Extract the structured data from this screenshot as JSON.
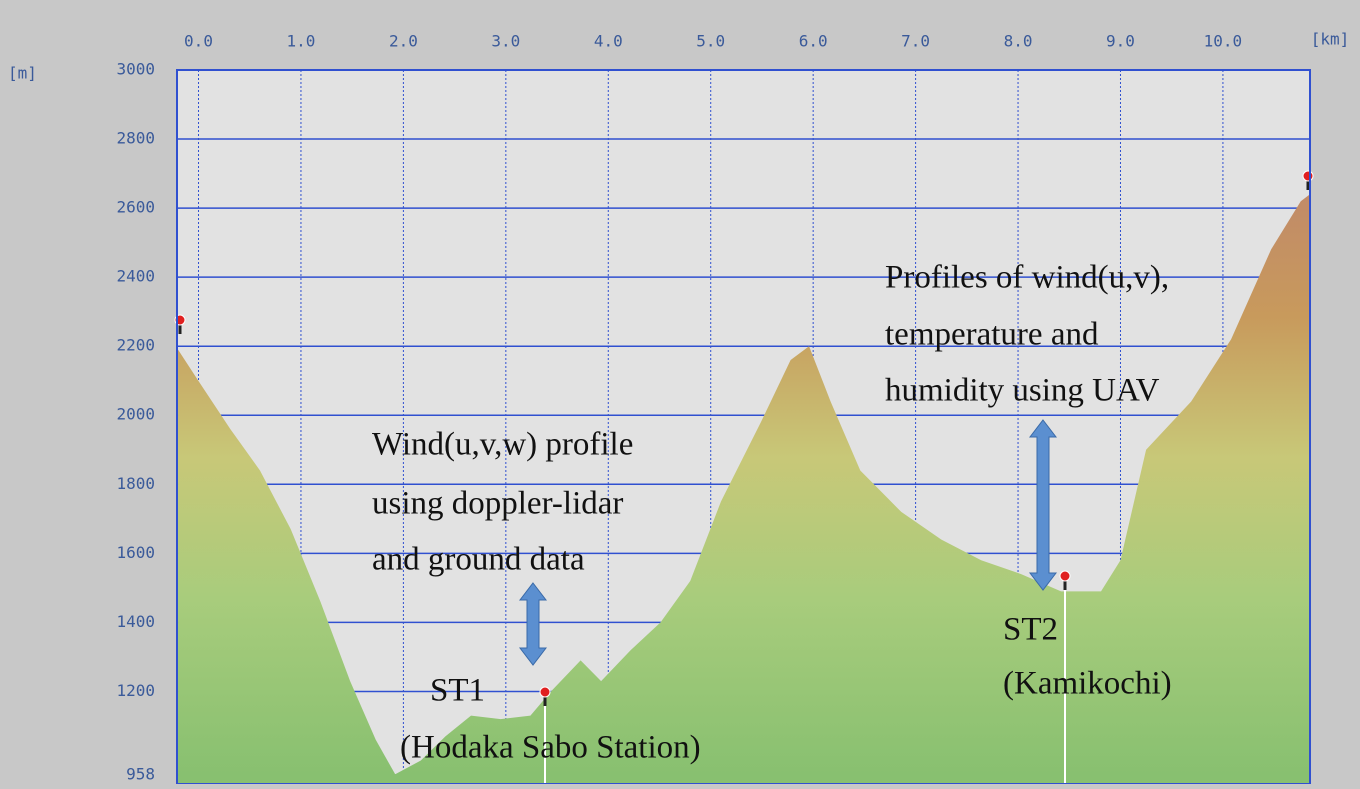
{
  "chart_data": {
    "type": "area",
    "x_unit_label": "[km]",
    "y_unit_label": "[m]",
    "x": [
      -0.2,
      0.02,
      0.31,
      0.6,
      0.9,
      1.19,
      1.48,
      1.73,
      1.92,
      2.17,
      2.41,
      2.66,
      2.95,
      3.24,
      3.44,
      3.73,
      3.93,
      4.22,
      4.51,
      4.8,
      5.1,
      5.49,
      5.78,
      5.96,
      6.17,
      6.46,
      6.86,
      7.25,
      7.64,
      8.03,
      8.42,
      8.81,
      9.0,
      9.25,
      9.69,
      10.08,
      10.47,
      10.76,
      10.85
    ],
    "values": [
      2190,
      2090,
      1960,
      1840,
      1670,
      1460,
      1230,
      1060,
      960,
      1000,
      1070,
      1130,
      1120,
      1130,
      1200,
      1290,
      1230,
      1320,
      1400,
      1520,
      1750,
      1980,
      2160,
      2200,
      2040,
      1840,
      1720,
      1640,
      1580,
      1540,
      1490,
      1490,
      1580,
      1900,
      2040,
      2220,
      2480,
      2620,
      2640
    ],
    "xlim": [
      -0.21,
      10.85
    ],
    "ylim": [
      958,
      3000
    ],
    "xticks": [
      {
        "value": 0,
        "label": "0.0"
      },
      {
        "value": 1,
        "label": "1.0"
      },
      {
        "value": 2,
        "label": "2.0"
      },
      {
        "value": 3,
        "label": "3.0"
      },
      {
        "value": 4,
        "label": "4.0"
      },
      {
        "value": 5,
        "label": "5.0"
      },
      {
        "value": 6,
        "label": "6.0"
      },
      {
        "value": 7,
        "label": "7.0"
      },
      {
        "value": 8,
        "label": "8.0"
      },
      {
        "value": 9,
        "label": "9.0"
      },
      {
        "value": 10,
        "label": "10.0"
      }
    ],
    "yticks": [
      958,
      1200,
      1400,
      1600,
      1800,
      2000,
      2200,
      2400,
      2600,
      2800,
      3000
    ],
    "grid": true,
    "annotations": [
      {
        "lines": [
          "Wind(u,v,w) profile",
          "using doppler-lidar",
          "and ground data"
        ]
      },
      {
        "lines": [
          "ST1",
          "(Hodaka Sabo Station)"
        ]
      },
      {
        "lines": [
          "Profiles of wind(u,v),",
          "temperature and",
          "humidity using UAV"
        ]
      },
      {
        "lines": [
          "ST2",
          "(Kamikochi)"
        ]
      }
    ]
  }
}
